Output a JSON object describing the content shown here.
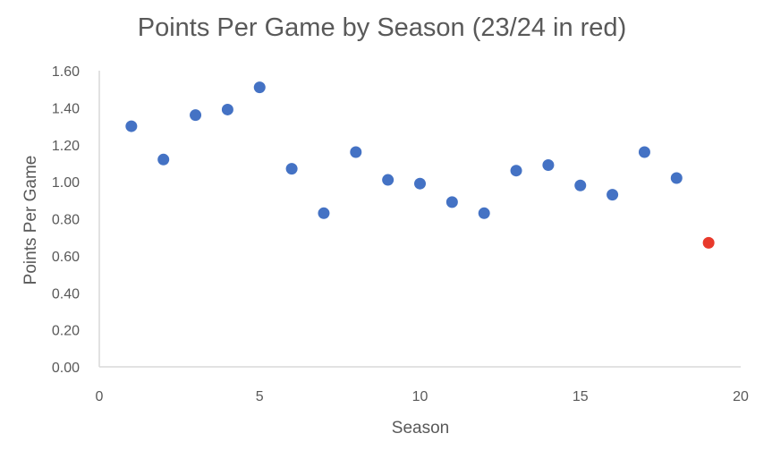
{
  "chart_data": {
    "type": "scatter",
    "title": "Points Per Game by Season (23/24 in red)",
    "xlabel": "Season",
    "ylabel": "Points Per Game",
    "xlim": [
      0,
      20
    ],
    "ylim": [
      0,
      1.6
    ],
    "x_ticks": [
      "0",
      "5",
      "10",
      "15",
      "20"
    ],
    "y_ticks": [
      "0.00",
      "0.20",
      "0.40",
      "0.60",
      "0.80",
      "1.00",
      "1.20",
      "1.40",
      "1.60"
    ],
    "grid": false,
    "legend": "none",
    "series": [
      {
        "color": "#4472c4",
        "x": [
          1,
          2,
          3,
          4,
          5,
          6,
          7,
          8,
          9,
          10,
          11,
          12,
          13,
          14,
          15,
          16,
          17,
          18
        ],
        "y": [
          1.3,
          1.12,
          1.36,
          1.39,
          1.51,
          1.07,
          0.83,
          1.16,
          1.01,
          0.99,
          0.89,
          0.83,
          1.06,
          1.09,
          0.98,
          0.93,
          1.16,
          1.02
        ]
      },
      {
        "color": "#e8392b",
        "x": [
          19
        ],
        "y": [
          0.67
        ]
      }
    ]
  }
}
